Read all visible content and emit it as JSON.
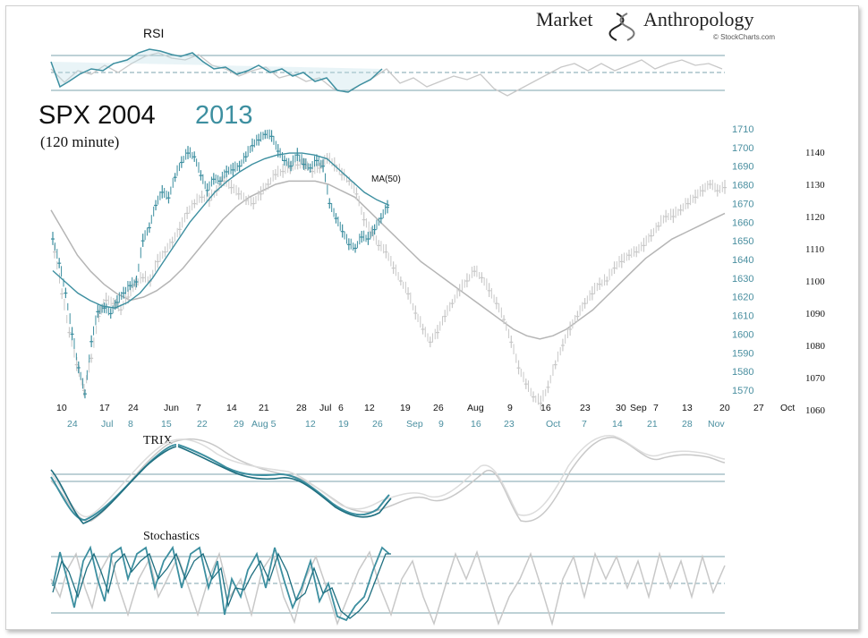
{
  "brand": {
    "name_left": "Market",
    "name_right": "Anthropology",
    "credit": "© StockCharts.com"
  },
  "title": {
    "old_year_label": "SPX 2004",
    "new_year_label": "2013",
    "subtitle": "(120 minute)"
  },
  "colors": {
    "series_2004": "#c8c8c8",
    "series_2004_ma": "#b5b5b5",
    "series_2013": "#3d8fa0",
    "series_2013_dark": "#1f6f80",
    "axis_2013": "#4a8fa0",
    "grid": "#7da3ad"
  },
  "panels": {
    "rsi": {
      "label": "RSI",
      "upper_level": 70,
      "lower_level": 30,
      "mid_level": 50
    },
    "trix": {
      "label": "TRIX"
    },
    "stochastics": {
      "label": "Stochastics",
      "upper_level": 80,
      "lower_level": 20
    }
  },
  "chart_data": {
    "type": "line",
    "title": "SPX 2004 2013",
    "subtitle": "(120 minute)",
    "ma_label": "MA(50)",
    "x_labels_2004": [
      "10",
      "17",
      "24",
      "Jun",
      "7",
      "14",
      "21",
      "28",
      "Jul",
      "6",
      "12",
      "19",
      "26",
      "Aug",
      "9",
      "16",
      "23",
      "30",
      "Sep",
      "7",
      "13",
      "20",
      "27",
      "Oct"
    ],
    "x_labels_2013": [
      "24",
      "Jul",
      "8",
      "15",
      "22",
      "29",
      "Aug 5",
      "12",
      "19",
      "26",
      "Sep",
      "9",
      "16",
      "23",
      "Oct",
      "7",
      "14",
      "21",
      "28",
      "Nov"
    ],
    "y_left_2013": {
      "label": "SPX 2013",
      "ticks": [
        1710,
        1700,
        1690,
        1680,
        1670,
        1660,
        1650,
        1640,
        1630,
        1620,
        1610,
        1600,
        1590,
        1580,
        1570
      ]
    },
    "y_right_2004": {
      "label": "SPX 2004",
      "ticks": [
        1140,
        1130,
        1120,
        1110,
        1100,
        1090,
        1080,
        1070,
        1060
      ]
    },
    "series": [
      {
        "name": "SPX 2004 (120 minute)",
        "axis": "right",
        "values": [
          1109,
          1096,
          1084,
          1074,
          1066,
          1076,
          1089,
          1094,
          1093,
          1091,
          1095,
          1099,
          1101,
          1100,
          1106,
          1109,
          1112,
          1116,
          1121,
          1124,
          1126,
          1125,
          1128,
          1131,
          1129,
          1127,
          1125,
          1124,
          1127,
          1130,
          1133,
          1134,
          1135,
          1136,
          1136,
          1134,
          1135,
          1138,
          1136,
          1133,
          1131,
          1127,
          1119,
          1115,
          1111,
          1109,
          1104,
          1100,
          1096,
          1090,
          1085,
          1081,
          1084,
          1089,
          1093,
          1097,
          1100,
          1103,
          1101,
          1097,
          1093,
          1088,
          1081,
          1073,
          1068,
          1064,
          1062,
          1067,
          1074,
          1080,
          1085,
          1089,
          1093,
          1096,
          1099,
          1100,
          1104,
          1106,
          1108,
          1109,
          1111,
          1114,
          1117,
          1120,
          1120,
          1122,
          1124,
          1126,
          1128,
          1130,
          1128,
          1129
        ]
      },
      {
        "name": "SPX 2004 MA(50)",
        "axis": "right",
        "values": [
          1122,
          1115,
          1108,
          1103,
          1099,
          1096,
          1094,
          1095,
          1097,
          1100,
          1104,
          1109,
          1114,
          1119,
          1123,
          1126,
          1128,
          1130,
          1131,
          1131,
          1131,
          1130,
          1128,
          1126,
          1122,
          1118,
          1114,
          1110,
          1106,
          1103,
          1100,
          1097,
          1094,
          1091,
          1088,
          1085,
          1083,
          1082,
          1083,
          1085,
          1088,
          1091,
          1095,
          1099,
          1103,
          1107,
          1110,
          1113,
          1115,
          1117,
          1119,
          1121
        ]
      },
      {
        "name": "SPX 2013 (120 minute)",
        "axis": "left",
        "values": [
          1651,
          1638,
          1622,
          1600,
          1582,
          1568,
          1596,
          1612,
          1614,
          1611,
          1617,
          1622,
          1626,
          1628,
          1650,
          1657,
          1669,
          1676,
          1673,
          1684,
          1692,
          1697,
          1695,
          1685,
          1677,
          1683,
          1682,
          1687,
          1688,
          1690,
          1695,
          1701,
          1704,
          1707,
          1706,
          1698,
          1693,
          1690,
          1696,
          1691,
          1689,
          1693,
          1690,
          1670,
          1662,
          1655,
          1648,
          1646,
          1652,
          1651,
          1656,
          1662,
          1668
        ]
      },
      {
        "name": "SPX 2013 MA(50)",
        "axis": "left",
        "values": [
          1634,
          1628,
          1622,
          1618,
          1615,
          1614,
          1617,
          1622,
          1630,
          1640,
          1650,
          1660,
          1668,
          1676,
          1682,
          1687,
          1691,
          1694,
          1696,
          1697,
          1697,
          1696,
          1694,
          1688,
          1682,
          1676,
          1672,
          1669
        ]
      }
    ]
  }
}
